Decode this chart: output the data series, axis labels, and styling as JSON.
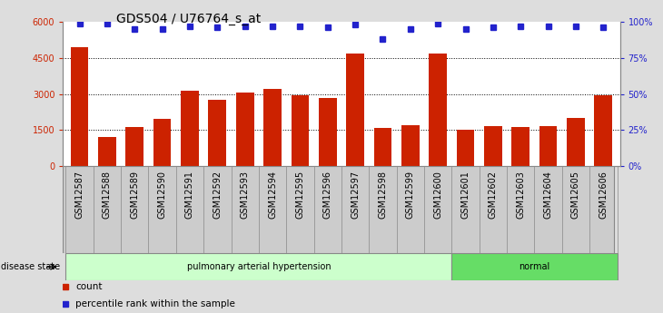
{
  "title": "GDS504 / U76764_s_at",
  "samples": [
    "GSM12587",
    "GSM12588",
    "GSM12589",
    "GSM12590",
    "GSM12591",
    "GSM12592",
    "GSM12593",
    "GSM12594",
    "GSM12595",
    "GSM12596",
    "GSM12597",
    "GSM12598",
    "GSM12599",
    "GSM12600",
    "GSM12601",
    "GSM12602",
    "GSM12603",
    "GSM12604",
    "GSM12605",
    "GSM12606"
  ],
  "counts": [
    4950,
    1220,
    1620,
    1950,
    3150,
    2750,
    3050,
    3200,
    2950,
    2820,
    4700,
    1600,
    1680,
    4700,
    1500,
    1650,
    1620,
    1640,
    2000,
    2950
  ],
  "percentiles": [
    99,
    99,
    95,
    95,
    97,
    96,
    97,
    97,
    97,
    96,
    98,
    88,
    95,
    99,
    95,
    96,
    97,
    97,
    97,
    96
  ],
  "bar_color": "#cc2200",
  "dot_color": "#2222cc",
  "ylim_left": [
    0,
    6000
  ],
  "ylim_right": [
    0,
    100
  ],
  "yticks_left": [
    0,
    1500,
    3000,
    4500,
    6000
  ],
  "ytick_labels_left": [
    "0",
    "1500",
    "3000",
    "4500",
    "6000"
  ],
  "yticks_right": [
    0,
    25,
    50,
    75,
    100
  ],
  "ytick_labels_right": [
    "0%",
    "25%",
    "50%",
    "75%",
    "100%"
  ],
  "disease_groups": [
    {
      "label": "pulmonary arterial hypertension",
      "start": 0,
      "end": 14,
      "color": "#ccffcc"
    },
    {
      "label": "normal",
      "start": 14,
      "end": 20,
      "color": "#66dd66"
    }
  ],
  "disease_state_label": "disease state",
  "legend_count": "count",
  "legend_percentile": "percentile rank within the sample",
  "bg_color": "#dddddd",
  "plot_bg_color": "#ffffff",
  "xtick_bg_color": "#cccccc",
  "grid_color": "#000000",
  "title_fontsize": 10,
  "tick_fontsize": 7,
  "label_fontsize": 8
}
